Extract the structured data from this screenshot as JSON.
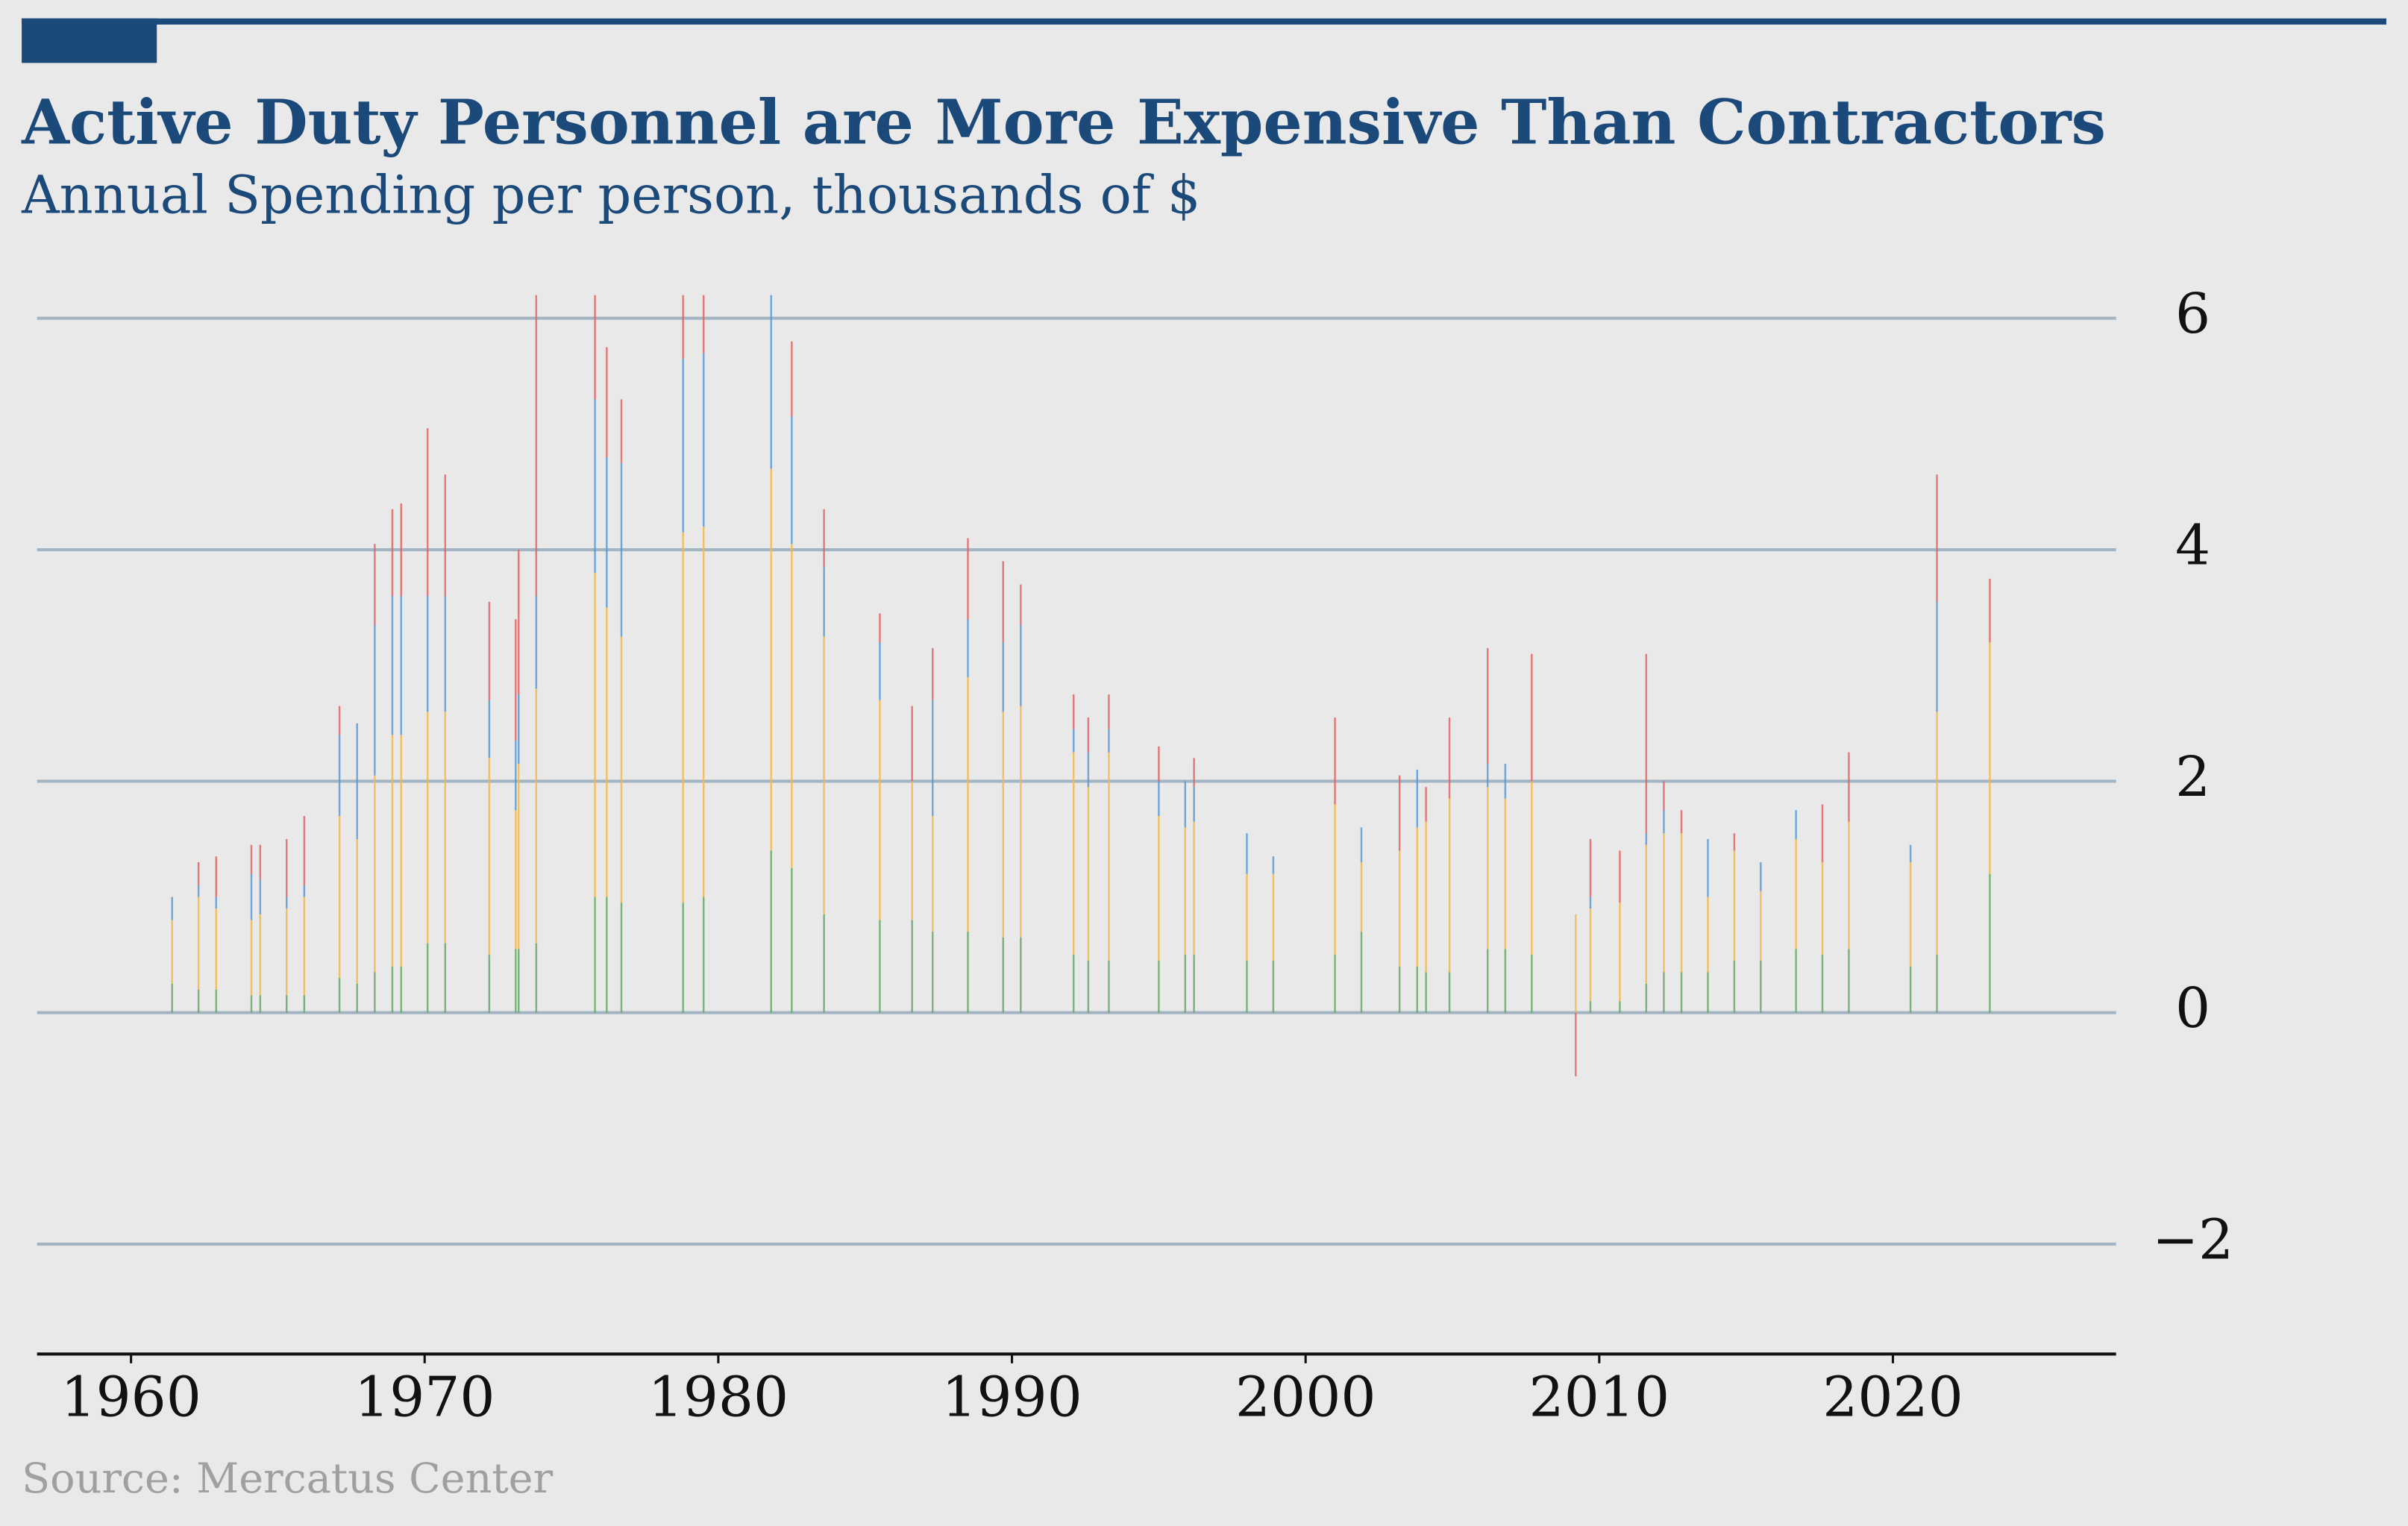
{
  "chart_data": {
    "type": "bar",
    "stacked": true,
    "title": "Active Duty Personnel are More Expensive Than Contractors",
    "subtitle": "Annual Spending per person, thousands of $",
    "source": "Source: Mercatus Center",
    "x": [
      1961.4,
      1962.3,
      1962.9,
      1964.1,
      1964.4,
      1965.3,
      1965.9,
      1967.1,
      1967.7,
      1968.3,
      1968.9,
      1969.2,
      1970.1,
      1970.7,
      1972.2,
      1973.1,
      1973.2,
      1973.8,
      1975.8,
      1976.2,
      1976.7,
      1978.8,
      1979.5,
      1981.8,
      1982.5,
      1983.6,
      1985.5,
      1986.6,
      1987.3,
      1988.5,
      1989.7,
      1990.3,
      1992.1,
      1992.6,
      1993.3,
      1995.0,
      1995.9,
      1996.2,
      1998.0,
      1998.9,
      2001.0,
      2001.9,
      2003.2,
      2003.8,
      2004.1,
      2004.9,
      2006.2,
      2006.8,
      2007.7,
      2009.2,
      2009.7,
      2010.7,
      2011.6,
      2012.2,
      2012.8,
      2013.7,
      2014.6,
      2015.5,
      2016.7,
      2017.6,
      2018.5,
      2020.6,
      2021.5,
      2023.3
    ],
    "series": [
      {
        "color": "#6aa86a",
        "values": [
          0.25,
          0.2,
          0.2,
          0.15,
          0.15,
          0.15,
          0.15,
          0.3,
          0.25,
          0.35,
          0.4,
          0.4,
          0.6,
          0.6,
          0.5,
          0.55,
          0.55,
          0.6,
          1.0,
          1.0,
          0.95,
          0.95,
          1.0,
          1.4,
          1.25,
          0.85,
          0.8,
          0.8,
          0.7,
          0.7,
          0.65,
          0.65,
          0.5,
          0.45,
          0.45,
          0.45,
          0.5,
          0.5,
          0.45,
          0.45,
          0.5,
          0.7,
          0.4,
          0.4,
          0.35,
          0.35,
          0.55,
          0.55,
          0.5,
          0,
          0.1,
          0.1,
          0.25,
          0.35,
          0.35,
          0.35,
          0.45,
          0.45,
          0.55,
          0.5,
          0.55,
          0.4,
          0.5,
          1.2
        ]
      },
      {
        "color": "#f2b84b",
        "values": [
          0.55,
          0.8,
          0.7,
          0.65,
          0.7,
          0.75,
          0.85,
          1.4,
          1.25,
          1.7,
          2.0,
          2.0,
          2.0,
          2.0,
          1.7,
          1.2,
          1.6,
          2.2,
          2.8,
          2.5,
          2.3,
          3.2,
          3.2,
          3.3,
          2.8,
          2.4,
          1.9,
          1.2,
          1.0,
          2.2,
          1.95,
          2.0,
          1.75,
          1.5,
          1.8,
          1.25,
          1.1,
          1.15,
          0.75,
          0.75,
          1.3,
          0.6,
          1.0,
          1.2,
          1.3,
          1.5,
          1.4,
          1.3,
          1.5,
          0.85,
          0.8,
          0.85,
          1.2,
          1.2,
          1.2,
          0.65,
          0.95,
          0.6,
          0.95,
          0.8,
          1.1,
          0.9,
          2.1,
          2.0
        ]
      },
      {
        "color": "#5b9bd5",
        "values": [
          0.2,
          0.1,
          0.1,
          0.4,
          0.3,
          0.1,
          0.1,
          0.7,
          1.0,
          1.3,
          1.2,
          1.2,
          1.0,
          1.0,
          0.5,
          0.6,
          0.6,
          0.8,
          1.5,
          1.3,
          1.5,
          1.5,
          1.5,
          1.5,
          1.1,
          0.6,
          0.5,
          0,
          1.0,
          0.5,
          0.6,
          0.7,
          0.2,
          0.3,
          0.2,
          0.3,
          0.4,
          0.3,
          0.35,
          0.15,
          0,
          0.3,
          0,
          0.5,
          0,
          0,
          0.2,
          0.3,
          0,
          0,
          0.1,
          0,
          0.1,
          0.2,
          0,
          0.5,
          0,
          0.25,
          0.25,
          0,
          0,
          0.15,
          0.95,
          0
        ]
      },
      {
        "color": "#e06666",
        "values": [
          0,
          0.2,
          0.35,
          0.25,
          0.3,
          0.5,
          0.6,
          0.25,
          0,
          0.7,
          0.75,
          0.8,
          1.45,
          1.05,
          0.85,
          1.05,
          1.25,
          2.6,
          0.9,
          0.95,
          0.55,
          0.55,
          0.5,
          0,
          0.65,
          0.5,
          0.25,
          0.65,
          0.45,
          0.7,
          0.7,
          0.35,
          0.3,
          0.3,
          0.3,
          0.3,
          0,
          0.25,
          0,
          0,
          0.75,
          0,
          0.65,
          0,
          0.3,
          0.7,
          1.0,
          0,
          1.1,
          -0.55,
          0.5,
          0.45,
          1.55,
          0.25,
          0.2,
          0,
          0.15,
          0,
          0,
          0.5,
          0.6,
          0,
          1.1,
          0.55
        ]
      }
    ],
    "xlim": [
      1956.8,
      2027.6
    ],
    "xticks": [
      1960,
      1970,
      1980,
      1990,
      2000,
      2010,
      2020
    ],
    "ylim": [
      -2.95,
      6.19
    ],
    "yticks": [
      {
        "value": -2,
        "label": "−2"
      },
      0,
      2,
      4,
      6
    ],
    "grid": true
  }
}
